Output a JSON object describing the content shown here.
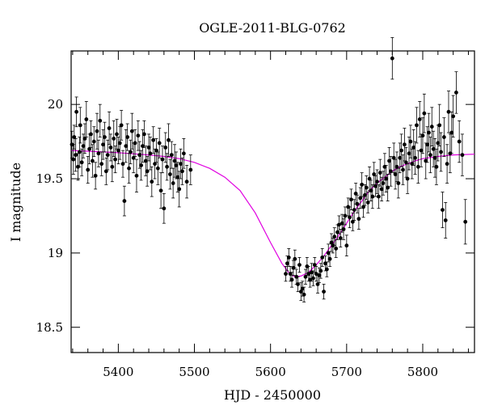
{
  "chart_data": {
    "type": "scatter",
    "title": "OGLE-2011-BLG-0762",
    "xlabel": "HJD - 2450000",
    "ylabel": "I magnitude",
    "xlim": [
      5338,
      5868
    ],
    "ylim": [
      20.36,
      18.33
    ],
    "y_inverted": true,
    "xticks": [
      5400,
      5500,
      5600,
      5700,
      5800
    ],
    "xtick_labels": [
      "5400",
      "5500",
      "5600",
      "5700",
      "5800"
    ],
    "yticks": [
      18.5,
      19,
      19.5,
      20
    ],
    "ytick_labels": [
      "18.5",
      "19",
      "19.5",
      "20"
    ],
    "grid": false,
    "colors": {
      "points": "#000000",
      "model": "#e000e0"
    },
    "model_curve": {
      "t": [
        5338,
        5360,
        5380,
        5400,
        5420,
        5440,
        5460,
        5480,
        5500,
        5520,
        5540,
        5560,
        5580,
        5600,
        5615,
        5625,
        5632,
        5640,
        5650,
        5660,
        5670,
        5680,
        5690,
        5700,
        5710,
        5720,
        5730,
        5740,
        5750,
        5760,
        5770,
        5780,
        5790,
        5800,
        5820,
        5840,
        5868
      ],
      "mag": [
        19.69,
        19.685,
        19.68,
        19.675,
        19.668,
        19.66,
        19.65,
        19.635,
        19.61,
        19.57,
        19.51,
        19.42,
        19.27,
        19.07,
        18.93,
        18.86,
        18.84,
        18.845,
        18.87,
        18.92,
        18.98,
        19.05,
        19.12,
        19.2,
        19.28,
        19.35,
        19.42,
        19.47,
        19.51,
        19.55,
        19.58,
        19.6,
        19.62,
        19.635,
        19.65,
        19.66,
        19.665
      ]
    },
    "points": [
      [
        5339,
        19.73,
        0.09
      ],
      [
        5341,
        19.63,
        0.1
      ],
      [
        5342,
        19.78,
        0.08
      ],
      [
        5344,
        19.66,
        0.11
      ],
      [
        5345,
        19.95,
        0.1
      ],
      [
        5347,
        19.58,
        0.09
      ],
      [
        5349,
        19.68,
        0.1
      ],
      [
        5350,
        19.86,
        0.12
      ],
      [
        5352,
        19.61,
        0.09
      ],
      [
        5354,
        19.72,
        0.08
      ],
      [
        5356,
        19.77,
        0.1
      ],
      [
        5358,
        19.9,
        0.12
      ],
      [
        5360,
        19.56,
        0.09
      ],
      [
        5362,
        19.7,
        0.1
      ],
      [
        5364,
        19.8,
        0.09
      ],
      [
        5366,
        19.62,
        0.11
      ],
      [
        5368,
        19.75,
        0.1
      ],
      [
        5370,
        19.52,
        0.09
      ],
      [
        5372,
        19.82,
        0.12
      ],
      [
        5374,
        19.67,
        0.09
      ],
      [
        5376,
        19.89,
        0.11
      ],
      [
        5378,
        19.6,
        0.08
      ],
      [
        5380,
        19.73,
        0.1
      ],
      [
        5382,
        19.78,
        0.1
      ],
      [
        5384,
        19.55,
        0.09
      ],
      [
        5386,
        19.66,
        0.1
      ],
      [
        5388,
        19.84,
        0.11
      ],
      [
        5390,
        19.71,
        0.09
      ],
      [
        5392,
        19.58,
        0.1
      ],
      [
        5394,
        19.77,
        0.12
      ],
      [
        5396,
        19.63,
        0.09
      ],
      [
        5398,
        19.8,
        0.1
      ],
      [
        5400,
        19.69,
        0.09
      ],
      [
        5402,
        19.74,
        0.11
      ],
      [
        5404,
        19.86,
        0.1
      ],
      [
        5406,
        19.6,
        0.09
      ],
      [
        5408,
        19.35,
        0.1
      ],
      [
        5410,
        19.72,
        0.11
      ],
      [
        5412,
        19.78,
        0.09
      ],
      [
        5414,
        19.57,
        0.1
      ],
      [
        5416,
        19.68,
        0.08
      ],
      [
        5418,
        19.82,
        0.12
      ],
      [
        5420,
        19.64,
        0.1
      ],
      [
        5422,
        19.74,
        0.09
      ],
      [
        5424,
        19.52,
        0.11
      ],
      [
        5426,
        19.79,
        0.1
      ],
      [
        5428,
        19.66,
        0.09
      ],
      [
        5430,
        19.59,
        0.1
      ],
      [
        5432,
        19.72,
        0.11
      ],
      [
        5434,
        19.8,
        0.09
      ],
      [
        5436,
        19.62,
        0.1
      ],
      [
        5438,
        19.55,
        0.1
      ],
      [
        5440,
        19.71,
        0.09
      ],
      [
        5442,
        19.67,
        0.11
      ],
      [
        5444,
        19.48,
        0.1
      ],
      [
        5446,
        19.76,
        0.09
      ],
      [
        5448,
        19.6,
        0.1
      ],
      [
        5450,
        19.69,
        0.08
      ],
      [
        5452,
        19.57,
        0.11
      ],
      [
        5454,
        19.74,
        0.1
      ],
      [
        5456,
        19.42,
        0.12
      ],
      [
        5458,
        19.63,
        0.09
      ],
      [
        5460,
        19.3,
        0.1
      ],
      [
        5462,
        19.71,
        0.1
      ],
      [
        5464,
        19.58,
        0.09
      ],
      [
        5466,
        19.76,
        0.11
      ],
      [
        5468,
        19.53,
        0.1
      ],
      [
        5470,
        19.66,
        0.09
      ],
      [
        5472,
        19.47,
        0.1
      ],
      [
        5474,
        19.62,
        0.11
      ],
      [
        5476,
        19.59,
        0.09
      ],
      [
        5478,
        19.51,
        0.1
      ],
      [
        5480,
        19.43,
        0.12
      ],
      [
        5482,
        19.6,
        0.1
      ],
      [
        5484,
        19.55,
        0.09
      ],
      [
        5486,
        19.67,
        0.1
      ],
      [
        5490,
        19.48,
        0.11
      ],
      [
        5495,
        19.56,
        0.1
      ],
      [
        5620,
        18.86,
        0.05
      ],
      [
        5622,
        18.93,
        0.05
      ],
      [
        5624,
        18.97,
        0.06
      ],
      [
        5626,
        18.86,
        0.05
      ],
      [
        5628,
        18.82,
        0.05
      ],
      [
        5630,
        18.9,
        0.05
      ],
      [
        5632,
        18.96,
        0.06
      ],
      [
        5634,
        18.84,
        0.05
      ],
      [
        5636,
        18.79,
        0.05
      ],
      [
        5638,
        18.92,
        0.05
      ],
      [
        5640,
        18.74,
        0.06
      ],
      [
        5642,
        18.76,
        0.05
      ],
      [
        5644,
        18.72,
        0.05
      ],
      [
        5646,
        18.84,
        0.05
      ],
      [
        5648,
        18.91,
        0.06
      ],
      [
        5650,
        18.86,
        0.05
      ],
      [
        5652,
        18.82,
        0.05
      ],
      [
        5654,
        18.87,
        0.06
      ],
      [
        5656,
        18.83,
        0.05
      ],
      [
        5658,
        18.92,
        0.05
      ],
      [
        5660,
        18.86,
        0.05
      ],
      [
        5662,
        18.79,
        0.06
      ],
      [
        5664,
        18.85,
        0.05
      ],
      [
        5666,
        18.88,
        0.05
      ],
      [
        5668,
        18.97,
        0.06
      ],
      [
        5670,
        18.74,
        0.05
      ],
      [
        5672,
        18.93,
        0.05
      ],
      [
        5674,
        18.89,
        0.05
      ],
      [
        5676,
        19.0,
        0.06
      ],
      [
        5678,
        18.96,
        0.05
      ],
      [
        5680,
        19.07,
        0.06
      ],
      [
        5682,
        19.05,
        0.05
      ],
      [
        5684,
        19.11,
        0.06
      ],
      [
        5686,
        19.03,
        0.06
      ],
      [
        5688,
        19.14,
        0.05
      ],
      [
        5690,
        19.19,
        0.06
      ],
      [
        5692,
        19.1,
        0.06
      ],
      [
        5694,
        19.2,
        0.06
      ],
      [
        5696,
        19.16,
        0.07
      ],
      [
        5698,
        19.25,
        0.06
      ],
      [
        5700,
        19.05,
        0.07
      ],
      [
        5702,
        19.31,
        0.06
      ],
      [
        5704,
        19.24,
        0.07
      ],
      [
        5706,
        19.36,
        0.07
      ],
      [
        5708,
        19.21,
        0.06
      ],
      [
        5710,
        19.29,
        0.07
      ],
      [
        5712,
        19.4,
        0.07
      ],
      [
        5714,
        19.33,
        0.06
      ],
      [
        5716,
        19.23,
        0.07
      ],
      [
        5718,
        19.37,
        0.07
      ],
      [
        5720,
        19.46,
        0.08
      ],
      [
        5722,
        19.31,
        0.07
      ],
      [
        5724,
        19.39,
        0.07
      ],
      [
        5726,
        19.44,
        0.08
      ],
      [
        5728,
        19.34,
        0.07
      ],
      [
        5730,
        19.5,
        0.08
      ],
      [
        5732,
        19.42,
        0.07
      ],
      [
        5734,
        19.38,
        0.08
      ],
      [
        5736,
        19.53,
        0.08
      ],
      [
        5738,
        19.45,
        0.07
      ],
      [
        5740,
        19.48,
        0.08
      ],
      [
        5742,
        19.38,
        0.08
      ],
      [
        5744,
        19.54,
        0.09
      ],
      [
        5746,
        19.43,
        0.08
      ],
      [
        5748,
        19.47,
        0.08
      ],
      [
        5750,
        19.58,
        0.09
      ],
      [
        5752,
        19.5,
        0.09
      ],
      [
        5754,
        19.44,
        0.09
      ],
      [
        5756,
        19.62,
        0.09
      ],
      [
        5758,
        19.55,
        0.1
      ],
      [
        5760,
        20.31,
        0.14
      ],
      [
        5762,
        19.64,
        0.1
      ],
      [
        5764,
        19.53,
        0.1
      ],
      [
        5766,
        19.58,
        0.1
      ],
      [
        5768,
        19.47,
        0.1
      ],
      [
        5770,
        19.64,
        0.1
      ],
      [
        5772,
        19.69,
        0.11
      ],
      [
        5774,
        19.56,
        0.1
      ],
      [
        5776,
        19.73,
        0.11
      ],
      [
        5778,
        19.61,
        0.1
      ],
      [
        5780,
        19.5,
        0.1
      ],
      [
        5782,
        19.67,
        0.11
      ],
      [
        5784,
        19.75,
        0.11
      ],
      [
        5786,
        19.6,
        0.1
      ],
      [
        5788,
        19.71,
        0.12
      ],
      [
        5790,
        19.64,
        0.11
      ],
      [
        5792,
        19.86,
        0.12
      ],
      [
        5794,
        19.58,
        0.11
      ],
      [
        5796,
        19.9,
        0.12
      ],
      [
        5798,
        19.69,
        0.11
      ],
      [
        5800,
        19.79,
        0.12
      ],
      [
        5802,
        19.94,
        0.13
      ],
      [
        5804,
        19.62,
        0.12
      ],
      [
        5806,
        19.73,
        0.12
      ],
      [
        5808,
        19.81,
        0.13
      ],
      [
        5810,
        19.66,
        0.12
      ],
      [
        5812,
        19.85,
        0.13
      ],
      [
        5814,
        19.7,
        0.12
      ],
      [
        5816,
        19.64,
        0.13
      ],
      [
        5818,
        19.58,
        0.12
      ],
      [
        5820,
        19.74,
        0.12
      ],
      [
        5822,
        19.86,
        0.14
      ],
      [
        5824,
        19.68,
        0.13
      ],
      [
        5826,
        19.29,
        0.12
      ],
      [
        5828,
        19.78,
        0.13
      ],
      [
        5830,
        19.22,
        0.12
      ],
      [
        5832,
        19.6,
        0.13
      ],
      [
        5834,
        19.95,
        0.14
      ],
      [
        5836,
        19.67,
        0.13
      ],
      [
        5838,
        19.81,
        0.14
      ],
      [
        5840,
        19.92,
        0.14
      ],
      [
        5844,
        20.08,
        0.14
      ],
      [
        5848,
        19.75,
        0.14
      ],
      [
        5852,
        19.66,
        0.14
      ],
      [
        5856,
        19.21,
        0.15
      ]
    ]
  }
}
